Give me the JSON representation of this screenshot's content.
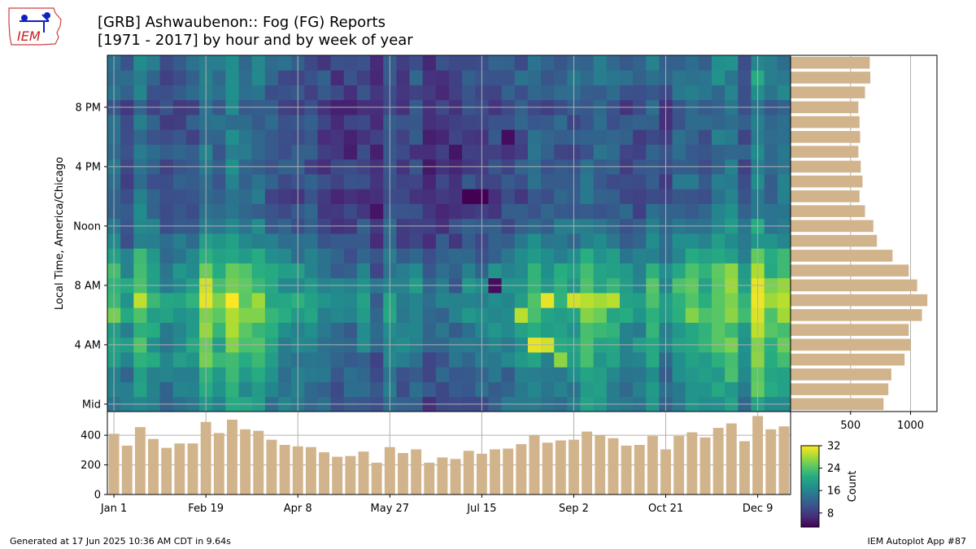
{
  "title": "[GRB] Ashwaubenon:: Fog (FG) Reports",
  "subtitle": "[1971 - 2017] by hour and by week of year",
  "logo_text": "IEM",
  "footer_left": "Generated at 17 Jun 2025 10:36 AM CDT in 9.64s",
  "footer_right": "IEM Autoplot App #87",
  "colors": {
    "bar": "#d2b48c",
    "grid": "#b0b0b0",
    "logo_outline": "#d04040",
    "logo_text": "#c82020",
    "logo_icon": "#1020c0"
  },
  "chart_data": [
    {
      "type": "heatmap",
      "ylabel": "Local Time, America/Chicago",
      "x_tick_labels": [
        "Jan 1",
        "Feb 19",
        "Apr 8",
        "May 27",
        "Jul 15",
        "Sep 2",
        "Oct 21",
        "Dec 9"
      ],
      "x_tick_weeks": [
        0,
        7,
        14,
        21,
        28,
        35,
        42,
        49
      ],
      "y_tick_labels": [
        "Mid",
        "4 AM",
        "8 AM",
        "Noon",
        "4 PM",
        "8 PM"
      ],
      "y_tick_hours": [
        0,
        4,
        8,
        12,
        16,
        20
      ],
      "weeks": 52,
      "hours": 24,
      "colorscale": "viridis",
      "grid": true,
      "hotspots": [
        {
          "week": 7,
          "hour": 8,
          "value": 30
        },
        {
          "week": 7,
          "hour": 7,
          "value": 31
        },
        {
          "week": 7,
          "hour": 3,
          "value": 26
        },
        {
          "week": 31,
          "hour": 6,
          "value": 29
        },
        {
          "week": 32,
          "hour": 4,
          "value": 31
        },
        {
          "week": 33,
          "hour": 4,
          "value": 30
        },
        {
          "week": 33,
          "hour": 7,
          "value": 31
        },
        {
          "week": 34,
          "hour": 3,
          "value": 27
        },
        {
          "week": 35,
          "hour": 7,
          "value": 30
        },
        {
          "week": 36,
          "hour": 7,
          "value": 29
        },
        {
          "week": 37,
          "hour": 7,
          "value": 28
        },
        {
          "week": 38,
          "hour": 7,
          "value": 29
        },
        {
          "week": 29,
          "hour": 8,
          "value": 4
        },
        {
          "week": 27,
          "hour": 14,
          "value": 3
        },
        {
          "week": 28,
          "hour": 14,
          "value": 3
        },
        {
          "week": 30,
          "hour": 18,
          "value": 4
        }
      ]
    },
    {
      "type": "bar",
      "orientation": "horizontal",
      "title": "",
      "xlabel": "",
      "category_axis": "hour",
      "categories": [
        0,
        1,
        2,
        3,
        4,
        5,
        6,
        7,
        8,
        9,
        10,
        11,
        12,
        13,
        14,
        15,
        16,
        17,
        18,
        19,
        20,
        21,
        22,
        23
      ],
      "values": [
        775,
        815,
        840,
        950,
        1000,
        985,
        1095,
        1140,
        1055,
        985,
        850,
        720,
        690,
        620,
        575,
        600,
        585,
        565,
        580,
        575,
        565,
        620,
        665,
        660
      ],
      "x_tick_labels": [
        "500",
        "1000"
      ],
      "x_tick_values": [
        500,
        1000
      ],
      "xlim": [
        0,
        1220
      ],
      "grid": true
    },
    {
      "type": "bar",
      "title": "",
      "ylabel": "",
      "category_axis": "week",
      "categories": [
        0,
        1,
        2,
        3,
        4,
        5,
        6,
        7,
        8,
        9,
        10,
        11,
        12,
        13,
        14,
        15,
        16,
        17,
        18,
        19,
        20,
        21,
        22,
        23,
        24,
        25,
        26,
        27,
        28,
        29,
        30,
        31,
        32,
        33,
        34,
        35,
        36,
        37,
        38,
        39,
        40,
        41,
        42,
        43,
        44,
        45,
        46,
        47,
        48,
        49,
        50,
        51
      ],
      "values": [
        410,
        330,
        455,
        375,
        315,
        345,
        345,
        490,
        415,
        505,
        440,
        430,
        370,
        335,
        325,
        320,
        285,
        255,
        260,
        290,
        215,
        320,
        280,
        305,
        215,
        250,
        240,
        295,
        275,
        305,
        310,
        340,
        400,
        350,
        365,
        370,
        425,
        400,
        380,
        330,
        335,
        395,
        305,
        395,
        420,
        385,
        450,
        480,
        360,
        530,
        440,
        460
      ],
      "y_tick_labels": [
        "0",
        "200",
        "400"
      ],
      "y_tick_values": [
        0,
        200,
        400
      ],
      "ylim": [
        0,
        560
      ],
      "grid": true
    },
    {
      "type": "colorbar",
      "label": "Count",
      "colorscale": "viridis",
      "range": [
        3,
        32
      ],
      "tick_labels": [
        "8",
        "16",
        "24",
        "32"
      ],
      "tick_values": [
        8,
        16,
        24,
        32
      ]
    }
  ]
}
